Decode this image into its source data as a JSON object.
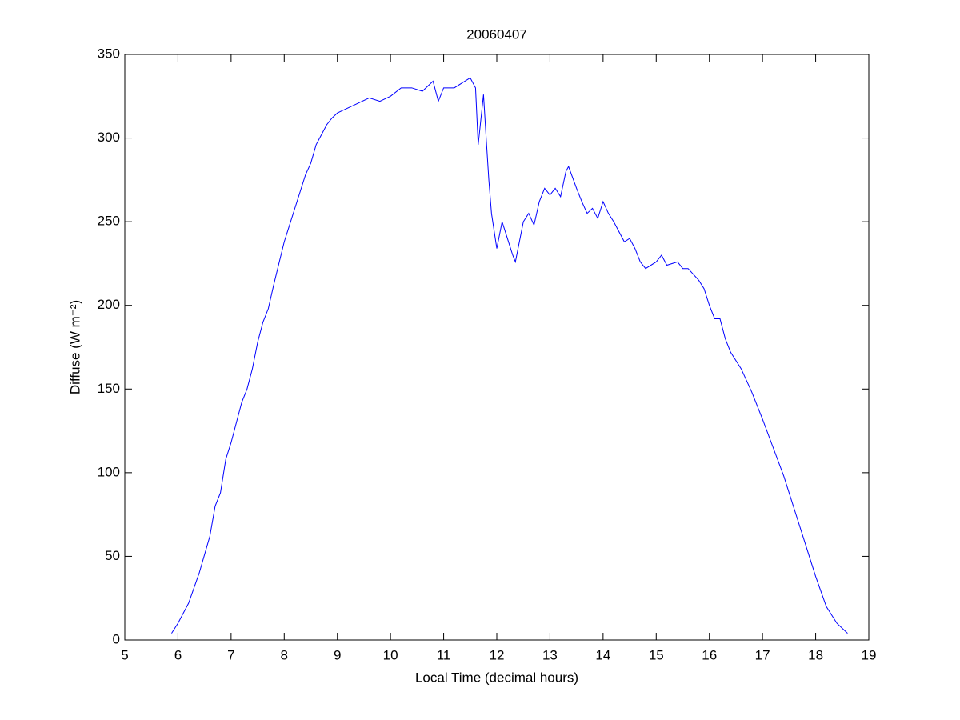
{
  "chart_data": {
    "type": "line",
    "title": "20060407",
    "x_label": "Local Time (decimal hours)",
    "y_label": "Diffuse (W m⁻²)",
    "x": [
      5.88,
      6.0,
      6.2,
      6.4,
      6.6,
      6.7,
      6.8,
      6.9,
      7.0,
      7.1,
      7.2,
      7.3,
      7.4,
      7.5,
      7.6,
      7.7,
      7.8,
      7.9,
      8.0,
      8.1,
      8.2,
      8.3,
      8.4,
      8.5,
      8.6,
      8.7,
      8.8,
      8.9,
      9.0,
      9.2,
      9.4,
      9.6,
      9.8,
      10.0,
      10.2,
      10.4,
      10.6,
      10.8,
      10.9,
      11.0,
      11.2,
      11.4,
      11.5,
      11.6,
      11.65,
      11.75,
      11.8,
      11.85,
      11.9,
      12.0,
      12.1,
      12.2,
      12.3,
      12.35,
      12.5,
      12.6,
      12.7,
      12.8,
      12.9,
      13.0,
      13.1,
      13.2,
      13.3,
      13.35,
      13.5,
      13.6,
      13.7,
      13.8,
      13.9,
      14.0,
      14.1,
      14.2,
      14.4,
      14.5,
      14.6,
      14.7,
      14.8,
      15.0,
      15.1,
      15.2,
      15.4,
      15.5,
      15.6,
      15.8,
      15.9,
      16.0,
      16.1,
      16.2,
      16.3,
      16.4,
      16.6,
      16.8,
      17.0,
      17.2,
      17.4,
      17.6,
      17.8,
      18.0,
      18.2,
      18.4,
      18.6
    ],
    "values": [
      4,
      10,
      22,
      40,
      62,
      80,
      88,
      108,
      118,
      130,
      142,
      150,
      162,
      178,
      190,
      198,
      212,
      225,
      238,
      248,
      258,
      268,
      278,
      285,
      296,
      302,
      308,
      312,
      315,
      318,
      321,
      324,
      322,
      325,
      330,
      330,
      328,
      334,
      322,
      330,
      330,
      334,
      336,
      330,
      296,
      326,
      300,
      275,
      255,
      234,
      250,
      240,
      230,
      226,
      250,
      255,
      248,
      262,
      270,
      266,
      270,
      265,
      280,
      283,
      270,
      262,
      255,
      258,
      252,
      262,
      255,
      250,
      238,
      240,
      234,
      226,
      222,
      226,
      230,
      224,
      226,
      222,
      222,
      215,
      210,
      200,
      192,
      192,
      180,
      172,
      162,
      148,
      132,
      115,
      98,
      78,
      58,
      38,
      20,
      10,
      4
    ],
    "color": "#0000ff",
    "xlim": [
      5,
      19
    ],
    "xticks": [
      5,
      6,
      7,
      8,
      9,
      10,
      11,
      12,
      13,
      14,
      15,
      16,
      17,
      18,
      19
    ],
    "ylim": [
      0,
      350
    ],
    "yticks": [
      0,
      50,
      100,
      150,
      200,
      250,
      300,
      350
    ]
  }
}
